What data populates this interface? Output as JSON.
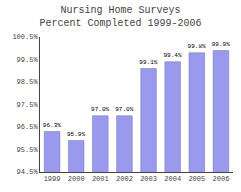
{
  "chart_data": {
    "type": "bar",
    "title": "Nursing Home Surveys\nPercent Completed 1999-2006",
    "categories": [
      "1999",
      "2000",
      "2001",
      "2002",
      "2003",
      "2004",
      "2005",
      "2006"
    ],
    "values": [
      96.3,
      95.9,
      97.0,
      97.0,
      99.1,
      99.4,
      99.8,
      99.9
    ],
    "value_labels": [
      "96.3%",
      "95.9%",
      "97.0%",
      "97.0%",
      "99.1%",
      "99.4%",
      "99.8%",
      "99.9%"
    ],
    "data_labels": true,
    "color": "#9999EE",
    "ylim": [
      94.5,
      100.5
    ],
    "yticks": [
      {
        "value": 94.5,
        "label": "94.5%"
      },
      {
        "value": 95.5,
        "label": "95.5%"
      },
      {
        "value": 96.5,
        "label": "96.5%"
      },
      {
        "value": 97.5,
        "label": "97.5%"
      },
      {
        "value": 98.5,
        "label": "98.5%"
      },
      {
        "value": 99.5,
        "label": "99.5%"
      },
      {
        "value": 100.5,
        "label": "100.5%"
      }
    ],
    "grid": false
  }
}
